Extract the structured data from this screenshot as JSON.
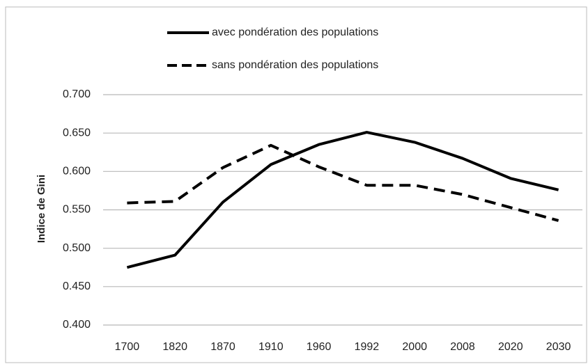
{
  "chart_data": {
    "type": "line",
    "ylabel": "Indice de Gini",
    "categories": [
      "1700",
      "1820",
      "1870",
      "1910",
      "1960",
      "1992",
      "2000",
      "2008",
      "2020",
      "2030"
    ],
    "series": [
      {
        "name": "avec pondération des populations",
        "color": "#000000",
        "dash": false,
        "values": [
          0.475,
          0.491,
          0.56,
          0.609,
          0.635,
          0.651,
          0.638,
          0.617,
          0.591,
          0.576
        ]
      },
      {
        "name": "sans pondération des populations",
        "color": "#000000",
        "dash": true,
        "values": [
          0.559,
          0.561,
          0.605,
          0.634,
          0.606,
          0.582,
          0.582,
          0.57,
          0.553,
          0.536
        ]
      }
    ],
    "ylim": [
      0.4,
      0.7
    ],
    "yticks": [
      {
        "value": 0.4,
        "label": "0.400"
      },
      {
        "value": 0.45,
        "label": "0.450"
      },
      {
        "value": 0.5,
        "label": "0.500"
      },
      {
        "value": 0.55,
        "label": "0.550"
      },
      {
        "value": 0.6,
        "label": "0.600"
      },
      {
        "value": 0.65,
        "label": "0.650"
      },
      {
        "value": 0.7,
        "label": "0.700"
      }
    ],
    "grid": true
  }
}
